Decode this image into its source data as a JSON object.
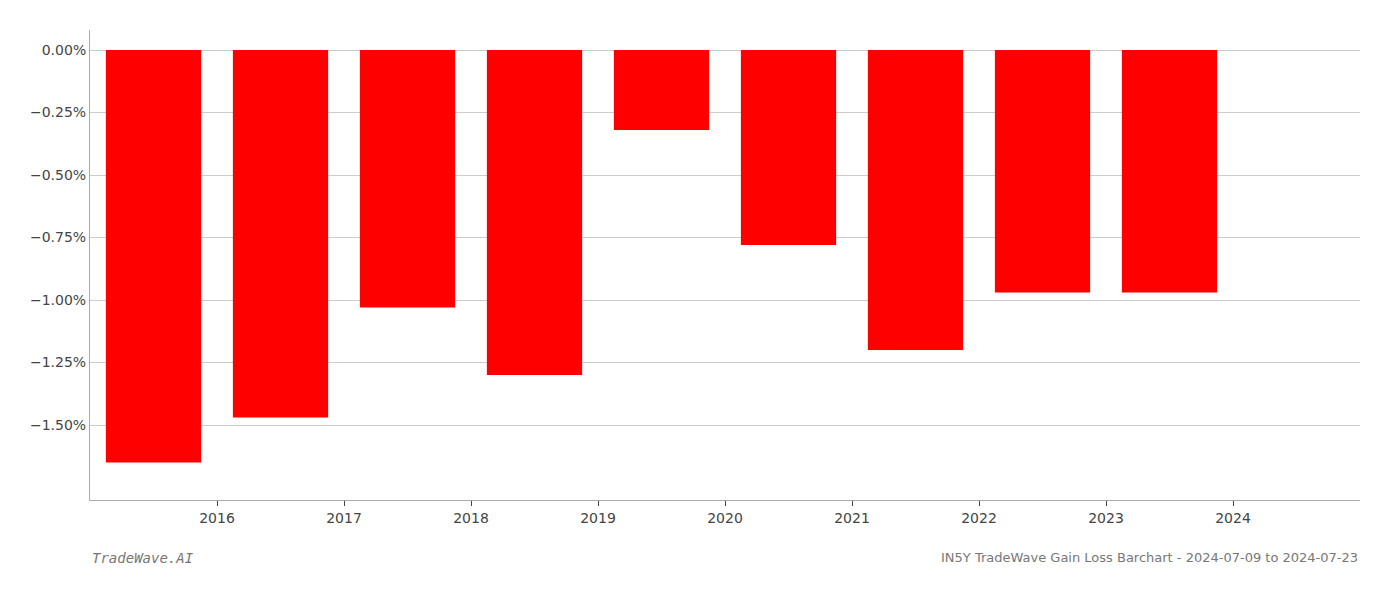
{
  "chart_data": {
    "type": "bar",
    "title": "IN5Y TradeWave Gain Loss Barchart - 2024-07-09 to 2024-07-23",
    "annotations": [
      "TradeWave.AI"
    ],
    "x": [
      2015.5,
      2016.5,
      2017.5,
      2018.5,
      2019.5,
      2020.5,
      2021.5,
      2022.5,
      2023.5
    ],
    "values": [
      -1.65,
      -1.47,
      -1.03,
      -1.3,
      -0.32,
      -0.78,
      -1.2,
      -0.97,
      -0.97
    ],
    "color": "#ff0000",
    "xlim": [
      2015.0,
      2025.0
    ],
    "xticks": [
      2016,
      2017,
      2018,
      2019,
      2020,
      2021,
      2022,
      2023,
      2024
    ],
    "ylim": [
      -1.8,
      0.08
    ],
    "yticks": [
      {
        "value": 0.0,
        "label": "0.00%"
      },
      {
        "value": -0.25,
        "label": "−0.25%"
      },
      {
        "value": -0.5,
        "label": "−0.50%"
      },
      {
        "value": -0.75,
        "label": "−0.75%"
      },
      {
        "value": -1.0,
        "label": "−1.00%"
      },
      {
        "value": -1.25,
        "label": "−1.25%"
      },
      {
        "value": -1.5,
        "label": "−1.50%"
      }
    ],
    "grid": true
  }
}
